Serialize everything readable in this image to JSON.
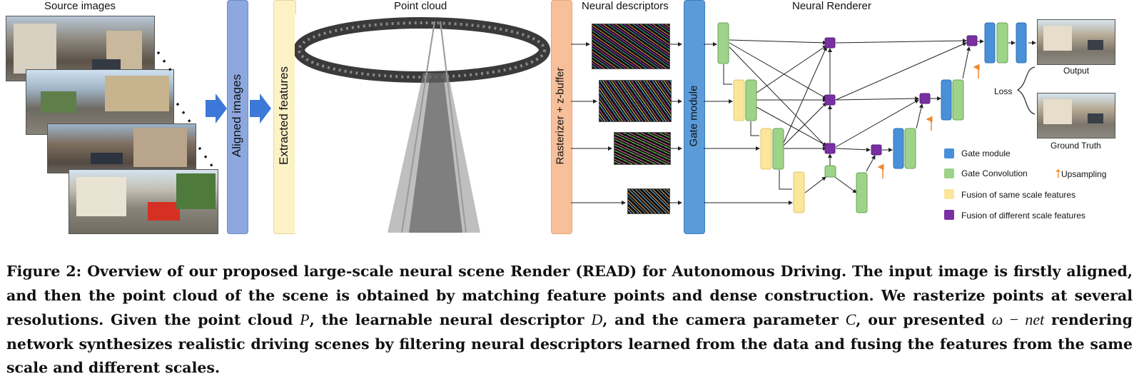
{
  "figure": {
    "labels": {
      "source_images": "Source images",
      "point_cloud": "Point cloud",
      "neural_descriptors": "Neural descriptors",
      "neural_renderer": "Neural Renderer",
      "aligned_images": "Aligned images",
      "extracted_features": "Extracted features",
      "rasterizer": "Rasterizer + z-buffer",
      "gate_module": "Gate module",
      "output": "Output",
      "loss": "Loss",
      "ground_truth": "Ground Truth"
    },
    "legend": [
      {
        "label": "Gate module",
        "color": "#4a90d9"
      },
      {
        "label": "Gate Convolution",
        "color": "#9ed38a"
      },
      {
        "label": "Upsampling",
        "color": "#f0872b"
      },
      {
        "label": "Fusion of same scale features",
        "color": "#fbe69a"
      },
      {
        "label": "Fusion of different scale features",
        "color": "#7a2fa3"
      }
    ],
    "colors": {
      "aligned_bar": "#8ca8df",
      "extracted_bar": "#fdf1c6",
      "rasterizer_bar": "#f7c09a",
      "gate_bar": "#5b9bd9",
      "arrow_blue": "#3c78d8"
    }
  },
  "caption": {
    "lead": "Figure 2: Overview of our proposed large-scale neural scene Render (READ) for Autonomous Driving. The input image is firstly aligned, and then the point cloud of the scene is obtained by matching feature points and dense construction. We rasterize points at several resolutions. Given the point cloud ",
    "var_p": "P",
    "part2": ", the learnable neural descriptor ",
    "var_d": "D",
    "part3": ", and the camera parameter ",
    "var_c": "C",
    "part4": ", our presented ",
    "omega": "ω − net",
    "part5": " rendering network synthesizes realistic driving scenes by filtering neural descriptors learned from the data and fusing the features from the same scale and different scales."
  }
}
